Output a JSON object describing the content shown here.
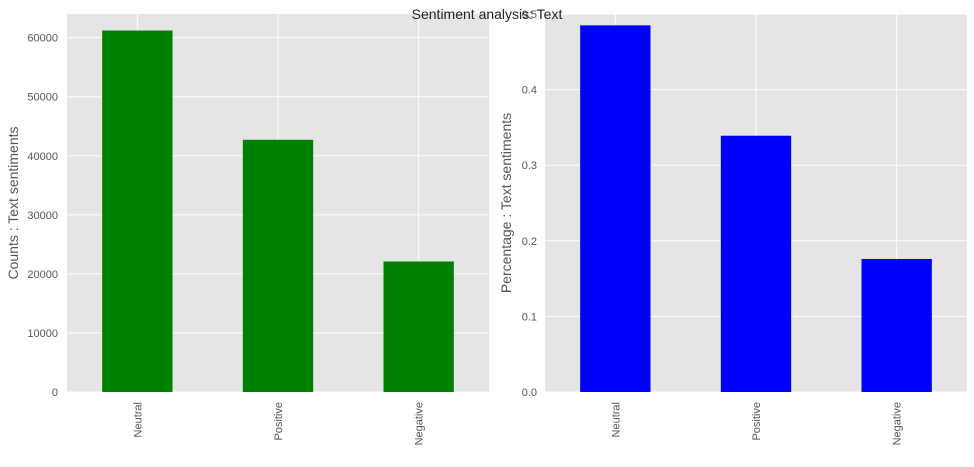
{
  "suptitle": "Sentiment analysis: Text",
  "colors": {
    "panel_bg": "#e5e5e5",
    "grid": "#ffffff",
    "tick_text": "#555555",
    "label_text": "#555555"
  },
  "chart_data": [
    {
      "type": "bar",
      "categories": [
        "Neutral",
        "Positive",
        "Negative"
      ],
      "values": [
        61200,
        42700,
        22100
      ],
      "title": "",
      "xlabel": "",
      "ylabel": "Counts : Text sentiments",
      "ylim": [
        0,
        64000
      ],
      "yticks": [
        0,
        10000,
        20000,
        30000,
        40000,
        50000,
        60000
      ],
      "color": "#008000",
      "grid": true
    },
    {
      "type": "bar",
      "categories": [
        "Neutral",
        "Positive",
        "Negative"
      ],
      "values": [
        0.485,
        0.339,
        0.176
      ],
      "title": "",
      "xlabel": "",
      "ylabel": "Percentage : Text sentiments",
      "ylim": [
        0,
        0.5
      ],
      "yticks": [
        0.0,
        0.1,
        0.2,
        0.3,
        0.4,
        0.5
      ],
      "color": "#0000ff",
      "grid": true
    }
  ]
}
